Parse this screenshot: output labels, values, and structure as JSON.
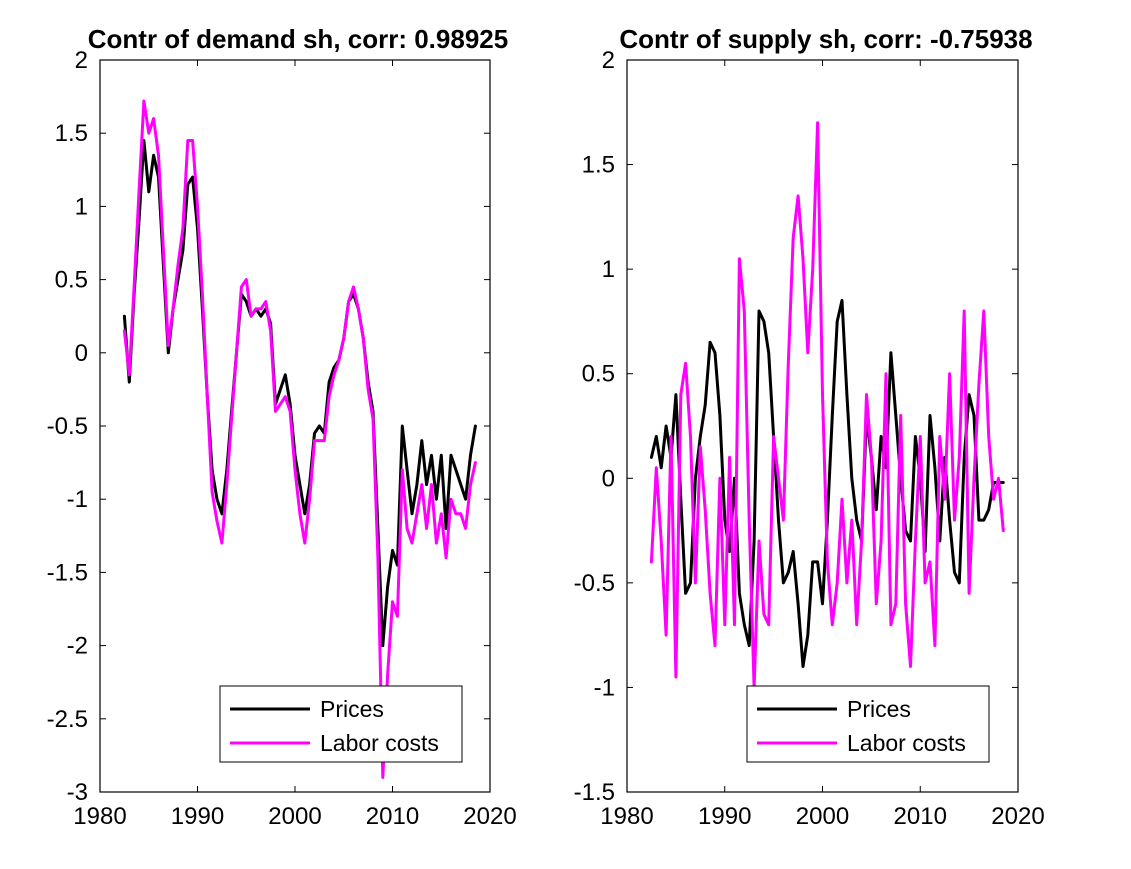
{
  "colors": {
    "prices": "#000000",
    "labor_costs": "#ff00ff",
    "axes": "#000000",
    "background": "#ffffff"
  },
  "chart_data": [
    {
      "type": "line",
      "title": "Contr of demand sh, corr: 0.98925",
      "xlabel": "",
      "ylabel": "",
      "xlim": [
        1980,
        2020
      ],
      "ylim": [
        -3,
        2
      ],
      "xticks": [
        1980,
        1990,
        2000,
        2010,
        2020
      ],
      "xtick_labels": [
        "1980",
        "1990",
        "2000",
        "2010",
        "2020"
      ],
      "yticks": [
        -3,
        -2.5,
        -2,
        -1.5,
        -1,
        -0.5,
        0,
        0.5,
        1,
        1.5,
        2
      ],
      "ytick_labels": [
        "-3",
        "-2.5",
        "-2",
        "-1.5",
        "-1",
        "-0.5",
        "0",
        "0.5",
        "1",
        "1.5",
        "2"
      ],
      "grid": false,
      "legend": "bottom-right",
      "series": [
        {
          "name": "Prices",
          "color": "#000000",
          "x": [
            1982.5,
            1983,
            1983.5,
            1984,
            1984.5,
            1985,
            1985.5,
            1986,
            1986.5,
            1987,
            1987.5,
            1988,
            1988.5,
            1989,
            1989.5,
            1990,
            1990.5,
            1991,
            1991.5,
            1992,
            1992.5,
            1993,
            1993.5,
            1994,
            1994.5,
            1995,
            1995.5,
            1996,
            1996.5,
            1997,
            1997.5,
            1998,
            1998.5,
            1999,
            1999.5,
            2000,
            2000.5,
            2001,
            2001.5,
            2002,
            2002.5,
            2003,
            2003.5,
            2004,
            2004.5,
            2005,
            2005.5,
            2006,
            2006.5,
            2007,
            2007.5,
            2008,
            2008.5,
            2009,
            2009.5,
            2010,
            2010.5,
            2011,
            2011.5,
            2012,
            2012.5,
            2013,
            2013.5,
            2014,
            2014.5,
            2015,
            2015.5,
            2016,
            2016.5,
            2017,
            2017.5,
            2018,
            2018.5
          ],
          "y": [
            0.25,
            -0.2,
            0.4,
            0.9,
            1.45,
            1.1,
            1.35,
            1.2,
            0.6,
            0.0,
            0.3,
            0.5,
            0.7,
            1.15,
            1.2,
            0.85,
            0.3,
            -0.3,
            -0.8,
            -1.0,
            -1.1,
            -0.8,
            -0.4,
            0.0,
            0.4,
            0.35,
            0.25,
            0.3,
            0.25,
            0.3,
            0.2,
            -0.35,
            -0.25,
            -0.15,
            -0.35,
            -0.7,
            -0.9,
            -1.1,
            -0.9,
            -0.55,
            -0.5,
            -0.55,
            -0.2,
            -0.1,
            -0.05,
            0.1,
            0.35,
            0.4,
            0.3,
            0.1,
            -0.2,
            -0.4,
            -1.2,
            -2.0,
            -1.6,
            -1.35,
            -1.45,
            -0.5,
            -0.8,
            -1.1,
            -0.9,
            -0.6,
            -0.9,
            -0.7,
            -1.0,
            -0.7,
            -1.2,
            -0.7,
            -0.8,
            -0.9,
            -1.0,
            -0.7,
            -0.5
          ]
        },
        {
          "name": "Labor costs",
          "color": "#ff00ff",
          "x": [
            1982.5,
            1983,
            1983.5,
            1984,
            1984.5,
            1985,
            1985.5,
            1986,
            1986.5,
            1987,
            1987.5,
            1988,
            1988.5,
            1989,
            1989.5,
            1990,
            1990.5,
            1991,
            1991.5,
            1992,
            1992.5,
            1993,
            1993.5,
            1994,
            1994.5,
            1995,
            1995.5,
            1996,
            1996.5,
            1997,
            1997.5,
            1998,
            1998.5,
            1999,
            1999.5,
            2000,
            2000.5,
            2001,
            2001.5,
            2002,
            2002.5,
            2003,
            2003.5,
            2004,
            2004.5,
            2005,
            2005.5,
            2006,
            2006.5,
            2007,
            2007.5,
            2008,
            2008.5,
            2009,
            2009.5,
            2010,
            2010.5,
            2011,
            2011.5,
            2012,
            2012.5,
            2013,
            2013.5,
            2014,
            2014.5,
            2015,
            2015.5,
            2016,
            2016.5,
            2017,
            2017.5,
            2018,
            2018.5
          ],
          "y": [
            0.15,
            -0.15,
            0.45,
            1.1,
            1.72,
            1.5,
            1.6,
            1.35,
            0.7,
            0.05,
            0.3,
            0.6,
            0.85,
            1.45,
            1.45,
            1.0,
            0.4,
            -0.3,
            -0.95,
            -1.15,
            -1.3,
            -0.9,
            -0.45,
            0.0,
            0.45,
            0.5,
            0.25,
            0.3,
            0.3,
            0.35,
            0.15,
            -0.4,
            -0.35,
            -0.3,
            -0.4,
            -0.8,
            -1.1,
            -1.3,
            -1.0,
            -0.6,
            -0.6,
            -0.6,
            -0.3,
            -0.15,
            -0.05,
            0.1,
            0.35,
            0.45,
            0.3,
            0.1,
            -0.25,
            -0.45,
            -1.4,
            -2.9,
            -2.2,
            -1.7,
            -1.8,
            -0.8,
            -1.2,
            -1.3,
            -1.1,
            -0.9,
            -1.2,
            -0.9,
            -1.3,
            -1.1,
            -1.4,
            -1.0,
            -1.1,
            -1.1,
            -1.2,
            -0.9,
            -0.75
          ]
        }
      ]
    },
    {
      "type": "line",
      "title": "Contr of supply sh, corr: -0.75938",
      "xlabel": "",
      "ylabel": "",
      "xlim": [
        1980,
        2020
      ],
      "ylim": [
        -1.5,
        2
      ],
      "xticks": [
        1980,
        1990,
        2000,
        2010,
        2020
      ],
      "xtick_labels": [
        "1980",
        "1990",
        "2000",
        "2010",
        "2020"
      ],
      "yticks": [
        -1.5,
        -1,
        -0.5,
        0,
        0.5,
        1,
        1.5,
        2
      ],
      "ytick_labels": [
        "-1.5",
        "-1",
        "-0.5",
        "0",
        "0.5",
        "1",
        "1.5",
        "2"
      ],
      "grid": false,
      "legend": "bottom-right",
      "series": [
        {
          "name": "Prices",
          "color": "#000000",
          "x": [
            1982.5,
            1983,
            1983.5,
            1984,
            1984.5,
            1985,
            1985.5,
            1986,
            1986.5,
            1987,
            1987.5,
            1988,
            1988.5,
            1989,
            1989.5,
            1990,
            1990.5,
            1991,
            1991.5,
            1992,
            1992.5,
            1993,
            1993.5,
            1994,
            1994.5,
            1995,
            1995.5,
            1996,
            1996.5,
            1997,
            1997.5,
            1998,
            1998.5,
            1999,
            1999.5,
            2000,
            2000.5,
            2001,
            2001.5,
            2002,
            2002.5,
            2003,
            2003.5,
            2004,
            2004.5,
            2005,
            2005.5,
            2006,
            2006.5,
            2007,
            2007.5,
            2008,
            2008.5,
            2009,
            2009.5,
            2010,
            2010.5,
            2011,
            2011.5,
            2012,
            2012.5,
            2013,
            2013.5,
            2014,
            2014.5,
            2015,
            2015.5,
            2016,
            2016.5,
            2017,
            2017.5,
            2018,
            2018.5
          ],
          "y": [
            0.1,
            0.2,
            0.05,
            0.25,
            0.1,
            0.4,
            -0.1,
            -0.55,
            -0.5,
            0.0,
            0.2,
            0.35,
            0.65,
            0.6,
            0.3,
            -0.2,
            -0.35,
            0.0,
            -0.55,
            -0.7,
            -0.8,
            -0.3,
            0.8,
            0.75,
            0.6,
            0.2,
            -0.2,
            -0.5,
            -0.45,
            -0.35,
            -0.6,
            -0.9,
            -0.75,
            -0.4,
            -0.4,
            -0.6,
            -0.2,
            0.3,
            0.75,
            0.85,
            0.4,
            0.0,
            -0.2,
            -0.3,
            0.3,
            0.1,
            -0.15,
            0.2,
            0.05,
            0.6,
            0.3,
            0.0,
            -0.25,
            -0.3,
            0.2,
            0.0,
            -0.35,
            0.3,
            0.05,
            -0.3,
            0.1,
            -0.2,
            -0.45,
            -0.5,
            0.1,
            0.4,
            0.3,
            -0.2,
            -0.2,
            -0.15,
            -0.02,
            -0.02,
            -0.02
          ]
        },
        {
          "name": "Labor costs",
          "color": "#ff00ff",
          "x": [
            1982.5,
            1983,
            1983.5,
            1984,
            1984.5,
            1985,
            1985.5,
            1986,
            1986.5,
            1987,
            1987.5,
            1988,
            1988.5,
            1989,
            1989.5,
            1990,
            1990.5,
            1991,
            1991.5,
            1992,
            1992.5,
            1993,
            1993.5,
            1994,
            1994.5,
            1995,
            1995.5,
            1996,
            1996.5,
            1997,
            1997.5,
            1998,
            1998.5,
            1999,
            1999.5,
            2000,
            2000.5,
            2001,
            2001.5,
            2002,
            2002.5,
            2003,
            2003.5,
            2004,
            2004.5,
            2005,
            2005.5,
            2006,
            2006.5,
            2007,
            2007.5,
            2008,
            2008.5,
            2009,
            2009.5,
            2010,
            2010.5,
            2011,
            2011.5,
            2012,
            2012.5,
            2013,
            2013.5,
            2014,
            2014.5,
            2015,
            2015.5,
            2016,
            2016.5,
            2017,
            2017.5,
            2018,
            2018.5
          ],
          "y": [
            -0.4,
            0.05,
            -0.3,
            -0.75,
            0.2,
            -0.95,
            0.4,
            0.55,
            0.2,
            -0.5,
            0.15,
            -0.15,
            -0.55,
            -0.8,
            0.0,
            -0.7,
            0.1,
            -0.7,
            1.05,
            0.8,
            -0.2,
            -1.0,
            -0.3,
            -0.65,
            -0.7,
            0.2,
            0.0,
            -0.2,
            0.55,
            1.15,
            1.35,
            1.05,
            0.6,
            1.0,
            1.7,
            0.4,
            -0.4,
            -0.7,
            -0.5,
            -0.1,
            -0.5,
            -0.2,
            -0.7,
            -0.3,
            0.4,
            0.1,
            -0.6,
            -0.3,
            0.5,
            -0.7,
            -0.6,
            0.3,
            -0.6,
            -0.9,
            -0.3,
            0.2,
            -0.5,
            -0.4,
            -0.8,
            0.2,
            -0.1,
            0.5,
            -0.2,
            0.1,
            0.8,
            -0.55,
            0.0,
            0.45,
            0.8,
            0.2,
            -0.1,
            0.0,
            -0.25
          ]
        }
      ]
    }
  ]
}
